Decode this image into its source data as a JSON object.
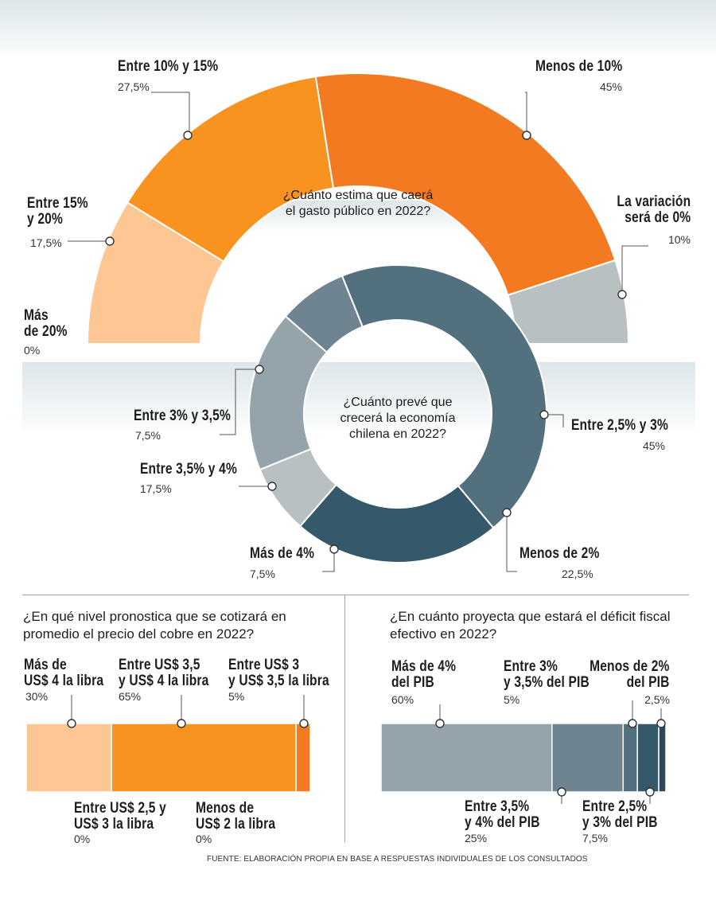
{
  "chart_data": [
    {
      "type": "pie",
      "title": "¿Cuánto estima que caerá el gasto público en 2022?",
      "labels": [
        "Más de 20%",
        "Entre 15% y 20%",
        "Entre 10% y 15%",
        "Menos de 10%",
        "La variación será de 0%"
      ],
      "values": [
        0,
        17.5,
        27.5,
        45,
        10
      ],
      "value_labels": [
        "0%",
        "17,5%",
        "27,5%",
        "45%",
        "10%"
      ],
      "colors": [
        "#fdc794",
        "#fdc794",
        "#f7931e",
        "#f47a22",
        "#b9c0c2"
      ]
    },
    {
      "type": "pie",
      "title": "¿Cuánto prevé que crecerá la economía chilena en 2022?",
      "labels": [
        "Entre 2,5% y 3%",
        "Menos de 2%",
        "Más de 4%",
        "Entre 3,5% y 4%",
        "Entre 3% y 3,5%"
      ],
      "values": [
        45,
        22.5,
        7.5,
        17.5,
        7.5
      ],
      "value_labels": [
        "45%",
        "22,5%",
        "7,5%",
        "17,5%",
        "7,5%"
      ],
      "colors": [
        "#52707e",
        "#35586a",
        "#b9c0c2",
        "#95a4aa",
        "#6e8490"
      ]
    },
    {
      "type": "bar",
      "title": "¿En qué nivel pronostica que se cotizará en promedio el precio del cobre en 2022?",
      "labels": [
        "Más de US$ 4 la libra",
        "Entre US$ 3,5 y US$ 4 la libra",
        "Entre US$ 3 y US$ 3,5 la libra",
        "Entre US$ 2,5 y US$ 3 la libra",
        "Menos de US$ 2 la libra"
      ],
      "values": [
        30,
        65,
        5,
        0,
        0
      ],
      "value_labels": [
        "30%",
        "65%",
        "5%",
        "0%",
        "0%"
      ],
      "colors": [
        "#fdc794",
        "#f7931e",
        "#f47a22"
      ]
    },
    {
      "type": "bar",
      "title": "¿En cuánto proyecta que estará el déficit fiscal efectivo en 2022?",
      "labels": [
        "Más de 4% del PIB",
        "Entre 3,5% y 4% del PIB",
        "Entre 3% y 3,5% del PIB",
        "Entre 2,5% y 3% del PIB",
        "Menos de 2% del PIB"
      ],
      "values": [
        60,
        25,
        5,
        7.5,
        2.5
      ],
      "value_labels": [
        "60%",
        "25%",
        "5%",
        "7,5%",
        "2,5%"
      ],
      "colors": [
        "#95a4aa",
        "#6e8490",
        "#52707e",
        "#35586a",
        "#2c4a59"
      ]
    }
  ],
  "texts": {
    "q1": [
      "¿Cuánto estima que caerá",
      "el gasto público en 2022?"
    ],
    "q2": [
      "¿Cuánto prevé que",
      "crecerá la economía",
      "chilena en 2022?"
    ],
    "q3": [
      "¿En qué nivel pronostica que se cotizará en",
      "promedio el precio del cobre en 2022?"
    ],
    "q4": [
      "¿En cuánto proyecta que estará el déficit fiscal",
      "efectivo en 2022?"
    ],
    "g1": {
      "mas20": [
        "Más",
        "de 20%"
      ],
      "mas20_pct": "0%",
      "e1520": [
        "Entre 15%",
        "y 20%"
      ],
      "e1520_pct": "17,5%",
      "e1015": "Entre 10% y 15%",
      "e1015_pct": "27,5%",
      "men10": "Menos de 10%",
      "men10_pct": "45%",
      "var0": [
        "La variación",
        "será de 0%"
      ],
      "var0_pct": "10%"
    },
    "g2": {
      "e2530": "Entre 2,5% y 3%",
      "e2530_pct": "45%",
      "men2": "Menos de 2%",
      "men2_pct": "22,5%",
      "mas4": "Más de 4%",
      "mas4_pct": "7,5%",
      "e3540": "Entre 3,5% y 4%",
      "e3540_pct": "17,5%",
      "e3035": "Entre 3% y 3,5%",
      "e3035_pct": "7,5%"
    },
    "g3": {
      "mas4": [
        "Más de",
        "US$ 4 la libra"
      ],
      "mas4_pct": "30%",
      "e354": [
        "Entre US$ 3,5",
        "y US$ 4 la libra"
      ],
      "e354_pct": "65%",
      "e335": [
        "Entre US$ 3",
        "y US$ 3,5 la libra"
      ],
      "e335_pct": "5%",
      "e253": [
        "Entre US$ 2,5 y",
        "US$ 3 la libra"
      ],
      "e253_pct": "0%",
      "men2": [
        "Menos de",
        "US$ 2 la libra"
      ],
      "men2_pct": "0%"
    },
    "g4": {
      "mas4": [
        "Más de 4%",
        "del PIB"
      ],
      "mas4_pct": "60%",
      "e335": [
        "Entre 3%",
        "y 3,5% del PIB"
      ],
      "e335_pct": "5%",
      "men2": [
        "Menos de 2%",
        "del PIB"
      ],
      "men2_pct": "2,5%",
      "e354": [
        "Entre 3,5%",
        "y 4% del PIB"
      ],
      "e354_pct": "25%",
      "e253": [
        "Entre 2,5%",
        "y 3% del PIB"
      ],
      "e253_pct": "7,5%"
    },
    "source": "FUENTE: ELABORACIÓN PROPIA EN BASE A RESPUESTAS INDIVIDUALES DE LOS CONSULTADOS"
  },
  "colors": {
    "band": "#dde6e9",
    "divider": "#9aa5aa"
  }
}
